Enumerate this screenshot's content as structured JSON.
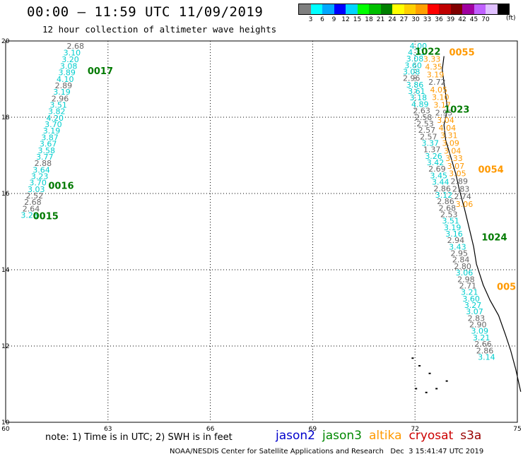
{
  "header": {
    "title": "00:00 – 11:59 UTC 11/09/2019",
    "subtitle": "12 hour collection of altimeter wave heights"
  },
  "color_legend": {
    "colors": [
      "#7f7f7f",
      "#00ffff",
      "#00a8ff",
      "#0000ff",
      "#00d4ff",
      "#00ff00",
      "#00c000",
      "#008000",
      "#ffff00",
      "#ffd000",
      "#ffa000",
      "#ff0000",
      "#c00000",
      "#800000",
      "#a000a0",
      "#c060ff",
      "#e0c0ff",
      "#000000"
    ],
    "tick_labels": [
      "3",
      "6",
      "9",
      "12",
      "15",
      "18",
      "21",
      "24",
      "27",
      "30",
      "33",
      "36",
      "39",
      "42",
      "45",
      "70"
    ],
    "unit": "(ft)"
  },
  "chart_data": {
    "type": "scatter",
    "x_ticks": [
      "60",
      "63",
      "66",
      "69",
      "72",
      "75"
    ],
    "y_ticks": [
      "10",
      "12",
      "14",
      "16",
      "18",
      "20"
    ],
    "xlim": [
      60,
      75
    ],
    "ylim": [
      10,
      20
    ],
    "grid": true,
    "series": [
      {
        "name": "jason3",
        "color": "#00cdcd",
        "points": [
          {
            "x": 62.3,
            "y": 19.8,
            "v": "2.68"
          },
          {
            "x": 62.2,
            "y": 19.62,
            "v": "3.10"
          },
          {
            "x": 62.15,
            "y": 19.44,
            "v": "3.20"
          },
          {
            "x": 62.1,
            "y": 19.27,
            "v": "3.08"
          },
          {
            "x": 62.05,
            "y": 19.1,
            "v": "3.89"
          },
          {
            "x": 62.0,
            "y": 18.93,
            "v": "4.10"
          },
          {
            "x": 61.95,
            "y": 18.76,
            "v": "2.89"
          },
          {
            "x": 61.9,
            "y": 18.59,
            "v": "3.19"
          },
          {
            "x": 61.85,
            "y": 18.42,
            "v": "2.96"
          },
          {
            "x": 61.8,
            "y": 18.25,
            "v": "3.51"
          },
          {
            "x": 61.75,
            "y": 18.08,
            "v": "3.82"
          },
          {
            "x": 61.7,
            "y": 17.91,
            "v": "4.20"
          },
          {
            "x": 61.65,
            "y": 17.74,
            "v": "3.70"
          },
          {
            "x": 61.6,
            "y": 17.57,
            "v": "3.19"
          },
          {
            "x": 61.55,
            "y": 17.4,
            "v": "3.87"
          },
          {
            "x": 61.5,
            "y": 17.23,
            "v": "3.67"
          },
          {
            "x": 61.45,
            "y": 17.06,
            "v": "3.58"
          },
          {
            "x": 61.4,
            "y": 16.89,
            "v": "3.77"
          },
          {
            "x": 61.35,
            "y": 16.72,
            "v": "2.88"
          },
          {
            "x": 61.3,
            "y": 16.55,
            "v": "3.64"
          },
          {
            "x": 61.25,
            "y": 16.38,
            "v": "3.23"
          },
          {
            "x": 61.2,
            "y": 16.21,
            "v": "3.70"
          },
          {
            "x": 61.15,
            "y": 16.04,
            "v": "3.03"
          },
          {
            "x": 61.1,
            "y": 15.87,
            "v": "2.52"
          },
          {
            "x": 61.05,
            "y": 15.7,
            "v": "2.68"
          },
          {
            "x": 61.0,
            "y": 15.53,
            "v": "2.64"
          },
          {
            "x": 60.95,
            "y": 15.36,
            "v": "3.28"
          },
          {
            "x": 72.35,
            "y": 19.8,
            "v": "4.00"
          },
          {
            "x": 72.3,
            "y": 19.63,
            "v": "4.31"
          },
          {
            "x": 72.25,
            "y": 19.46,
            "v": "3.08"
          },
          {
            "x": 72.2,
            "y": 19.29,
            "v": "3.60"
          },
          {
            "x": 72.15,
            "y": 19.12,
            "v": "3.08"
          },
          {
            "x": 72.15,
            "y": 18.95,
            "v": "2.96"
          },
          {
            "x": 72.25,
            "y": 18.78,
            "v": "3.86"
          },
          {
            "x": 72.3,
            "y": 18.61,
            "v": "3.61"
          },
          {
            "x": 72.35,
            "y": 18.44,
            "v": "3.18"
          },
          {
            "x": 72.4,
            "y": 18.27,
            "v": "4.89"
          },
          {
            "x": 72.45,
            "y": 18.1,
            "v": "2.63"
          },
          {
            "x": 72.5,
            "y": 17.93,
            "v": "2.58"
          },
          {
            "x": 72.55,
            "y": 17.76,
            "v": "2.53"
          },
          {
            "x": 72.6,
            "y": 17.59,
            "v": "2.57"
          },
          {
            "x": 72.65,
            "y": 17.42,
            "v": "2.57"
          },
          {
            "x": 72.7,
            "y": 17.25,
            "v": "3.37"
          },
          {
            "x": 72.75,
            "y": 17.08,
            "v": "1.37"
          },
          {
            "x": 72.8,
            "y": 16.91,
            "v": "3.26"
          },
          {
            "x": 72.85,
            "y": 16.74,
            "v": "3.42"
          },
          {
            "x": 72.9,
            "y": 16.57,
            "v": "2.69"
          },
          {
            "x": 72.95,
            "y": 16.4,
            "v": "3.45"
          },
          {
            "x": 73.0,
            "y": 16.23,
            "v": "3.44"
          },
          {
            "x": 73.05,
            "y": 16.06,
            "v": "2.86"
          },
          {
            "x": 73.1,
            "y": 15.89,
            "v": "3.12"
          },
          {
            "x": 73.15,
            "y": 15.72,
            "v": "2.86"
          },
          {
            "x": 73.2,
            "y": 15.55,
            "v": "2.68"
          },
          {
            "x": 73.25,
            "y": 15.38,
            "v": "2.53"
          },
          {
            "x": 73.3,
            "y": 15.21,
            "v": "3.51"
          },
          {
            "x": 73.35,
            "y": 15.04,
            "v": "3.19"
          },
          {
            "x": 73.4,
            "y": 14.87,
            "v": "3.16"
          },
          {
            "x": 73.45,
            "y": 14.7,
            "v": "2.94"
          },
          {
            "x": 73.5,
            "y": 14.53,
            "v": "3.43"
          },
          {
            "x": 73.55,
            "y": 14.36,
            "v": "2.95"
          },
          {
            "x": 73.6,
            "y": 14.19,
            "v": "2.84"
          },
          {
            "x": 73.65,
            "y": 14.02,
            "v": "2.80"
          },
          {
            "x": 73.7,
            "y": 13.85,
            "v": "3.06"
          },
          {
            "x": 73.75,
            "y": 13.68,
            "v": "2.98"
          },
          {
            "x": 73.8,
            "y": 13.51,
            "v": "2.71"
          },
          {
            "x": 73.85,
            "y": 13.34,
            "v": "3.21"
          },
          {
            "x": 73.9,
            "y": 13.17,
            "v": "3.60"
          },
          {
            "x": 73.95,
            "y": 13.0,
            "v": "3.27"
          },
          {
            "x": 74.0,
            "y": 12.83,
            "v": "3.07"
          },
          {
            "x": 74.05,
            "y": 12.66,
            "v": "2.83"
          },
          {
            "x": 74.1,
            "y": 12.49,
            "v": "2.90"
          },
          {
            "x": 74.15,
            "y": 12.32,
            "v": "3.09"
          },
          {
            "x": 74.2,
            "y": 12.15,
            "v": "3.21"
          },
          {
            "x": 74.25,
            "y": 11.98,
            "v": "2.66"
          },
          {
            "x": 74.3,
            "y": 11.81,
            "v": "2.86"
          },
          {
            "x": 74.35,
            "y": 11.64,
            "v": "3.14"
          }
        ]
      },
      {
        "name": "altika",
        "color": "#ff9900",
        "points": [
          {
            "x": 72.75,
            "y": 19.45,
            "v": "3.33"
          },
          {
            "x": 72.8,
            "y": 19.25,
            "v": "4.35"
          },
          {
            "x": 72.85,
            "y": 19.05,
            "v": "3.19"
          },
          {
            "x": 72.9,
            "y": 18.85,
            "v": "2.72"
          },
          {
            "x": 72.95,
            "y": 18.65,
            "v": "4.05"
          },
          {
            "x": 73.0,
            "y": 18.45,
            "v": "3.10"
          },
          {
            "x": 73.05,
            "y": 18.25,
            "v": "3.17"
          },
          {
            "x": 73.1,
            "y": 18.05,
            "v": "2.93"
          },
          {
            "x": 73.15,
            "y": 17.85,
            "v": "3.04"
          },
          {
            "x": 73.2,
            "y": 17.65,
            "v": "4.04"
          },
          {
            "x": 73.25,
            "y": 17.45,
            "v": "3.31"
          },
          {
            "x": 73.3,
            "y": 17.25,
            "v": "3.09"
          },
          {
            "x": 73.35,
            "y": 17.05,
            "v": "3.04"
          },
          {
            "x": 73.4,
            "y": 16.85,
            "v": "3.33"
          },
          {
            "x": 73.45,
            "y": 16.65,
            "v": "3.07"
          },
          {
            "x": 73.5,
            "y": 16.45,
            "v": "3.05"
          },
          {
            "x": 73.55,
            "y": 16.25,
            "v": "2.89"
          },
          {
            "x": 73.6,
            "y": 16.05,
            "v": "2.83"
          },
          {
            "x": 73.65,
            "y": 15.85,
            "v": "2.74"
          },
          {
            "x": 73.7,
            "y": 15.65,
            "v": "3.06"
          }
        ]
      }
    ],
    "time_labels": [
      {
        "x": 62.4,
        "y": 19.13,
        "t": "0017",
        "c": "#007a00"
      },
      {
        "x": 61.25,
        "y": 16.12,
        "t": "0016",
        "c": "#007a00"
      },
      {
        "x": 60.8,
        "y": 15.32,
        "t": "0015",
        "c": "#007a00"
      },
      {
        "x": 72.0,
        "y": 19.64,
        "t": "1022",
        "c": "#007a00"
      },
      {
        "x": 72.85,
        "y": 18.12,
        "t": "1023",
        "c": "#007a00"
      },
      {
        "x": 73.95,
        "y": 14.77,
        "t": "1024",
        "c": "#007a00"
      },
      {
        "x": 73.0,
        "y": 19.62,
        "t": "0055",
        "c": "#ff9900"
      },
      {
        "x": 73.85,
        "y": 16.55,
        "t": "0054",
        "c": "#ff9900"
      },
      {
        "x": 74.4,
        "y": 13.47,
        "t": "005",
        "c": "#ff9900"
      }
    ],
    "coastline": [
      [
        72.85,
        19.6
      ],
      [
        72.8,
        19.25
      ],
      [
        72.85,
        18.9
      ],
      [
        72.9,
        18.6
      ],
      [
        72.95,
        18.2
      ],
      [
        72.85,
        17.8
      ],
      [
        72.9,
        17.4
      ],
      [
        73.05,
        16.95
      ],
      [
        73.2,
        16.5
      ],
      [
        73.3,
        16.1
      ],
      [
        73.45,
        15.6
      ],
      [
        73.6,
        15.05
      ],
      [
        73.72,
        14.6
      ],
      [
        73.8,
        14.15
      ],
      [
        74.0,
        13.6
      ],
      [
        74.2,
        13.2
      ],
      [
        74.45,
        12.8
      ],
      [
        74.65,
        12.3
      ],
      [
        74.8,
        11.9
      ],
      [
        74.95,
        11.4
      ],
      [
        75.1,
        10.8
      ]
    ]
  },
  "note": "note: 1) Time is in UTC; 2) SWH is in feet",
  "satellites": [
    {
      "name": "jason2",
      "color": "#0000cc"
    },
    {
      "name": "jason3",
      "color": "#008800"
    },
    {
      "name": "altika",
      "color": "#ff9900"
    },
    {
      "name": "cryosat",
      "color": "#cc0000"
    },
    {
      "name": "s3a",
      "color": "#990000"
    }
  ],
  "credit": "NOAA/NESDIS Center for Satellite Applications and Research   Dec  3 15:41:47 UTC 2019"
}
